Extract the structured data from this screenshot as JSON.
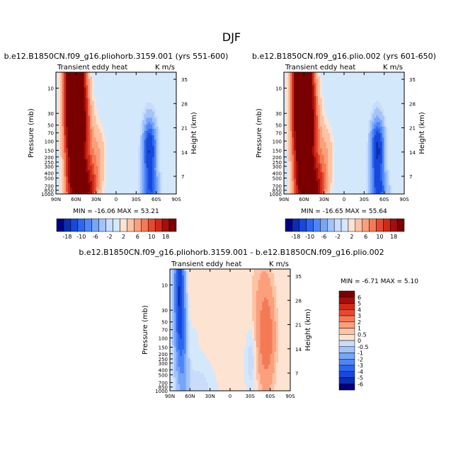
{
  "figure": {
    "title": "DJF",
    "colors": {
      "background": "#ffffff",
      "field_background": "#d4e8fb"
    }
  },
  "chart_data": [
    {
      "type": "heatmap",
      "subtitle": "b.e12.B1850CN.f09_g16.pliohorb.3159.001 (yrs 551-600)",
      "left_label": "Transient eddy heat",
      "right_label": "K m/s",
      "xlabel": "",
      "ylabel": "Pressure (mb)",
      "ylabel_right": "Height (km)",
      "x_ticks": [
        "90N",
        "60N",
        "30N",
        "0",
        "30S",
        "60S",
        "90S"
      ],
      "y_ticks": [
        "10",
        "30",
        "50",
        "70",
        "100",
        "150",
        "200",
        "250",
        "300",
        "400",
        "500",
        "700",
        "850",
        "1000"
      ],
      "y_right_ticks": [
        "35",
        "28",
        "21",
        "14",
        "7"
      ],
      "stats": "MIN = -16.06   MAX =  53.21",
      "min": -16.06,
      "max": 53.21,
      "x_range": [
        -90,
        90
      ],
      "p_range": [
        1000,
        5
      ],
      "features": [
        {
          "lat": 62,
          "p": 12,
          "value": 45,
          "slat": 9,
          "sp": 1.1
        },
        {
          "lat": 52,
          "p": 70,
          "value": 12,
          "slat": 10,
          "sp": 0.6
        },
        {
          "lat": 50,
          "p": 850,
          "value": 22,
          "slat": 12,
          "sp": 0.35
        },
        {
          "lat": 28,
          "p": 200,
          "value": 4,
          "slat": 8,
          "sp": 0.4
        },
        {
          "lat": -50,
          "p": 150,
          "value": -14,
          "slat": 7,
          "sp": 0.4
        },
        {
          "lat": -52,
          "p": 900,
          "value": -8,
          "slat": 9,
          "sp": 0.25
        },
        {
          "lat": -10,
          "p": 40,
          "value": 1,
          "slat": 14,
          "sp": 0.7
        }
      ]
    },
    {
      "type": "heatmap",
      "subtitle": "b.e12.B1850CN.f09_g16.plio.002 (yrs 601-650)",
      "left_label": "Transient eddy heat",
      "right_label": "K m/s",
      "xlabel": "",
      "ylabel": "Pressure (mb)",
      "ylabel_right": "Height (km)",
      "x_ticks": [
        "90N",
        "60N",
        "30N",
        "0",
        "30S",
        "60S",
        "90S"
      ],
      "y_ticks": [
        "10",
        "30",
        "50",
        "70",
        "100",
        "150",
        "200",
        "250",
        "300",
        "400",
        "500",
        "700",
        "850",
        "1000"
      ],
      "y_right_ticks": [
        "35",
        "28",
        "21",
        "14",
        "7"
      ],
      "stats": "MIN = -16.65   MAX =  55.64",
      "min": -16.65,
      "max": 55.64,
      "x_range": [
        -90,
        90
      ],
      "p_range": [
        1000,
        5
      ],
      "features": [
        {
          "lat": 62,
          "p": 12,
          "value": 47,
          "slat": 9,
          "sp": 1.1
        },
        {
          "lat": 52,
          "p": 70,
          "value": 12,
          "slat": 10,
          "sp": 0.6
        },
        {
          "lat": 50,
          "p": 850,
          "value": 23,
          "slat": 12,
          "sp": 0.35
        },
        {
          "lat": 28,
          "p": 200,
          "value": 4,
          "slat": 8,
          "sp": 0.4
        },
        {
          "lat": -50,
          "p": 150,
          "value": -15,
          "slat": 7,
          "sp": 0.4
        },
        {
          "lat": -52,
          "p": 900,
          "value": -9,
          "slat": 9,
          "sp": 0.25
        },
        {
          "lat": -10,
          "p": 40,
          "value": 1,
          "slat": 14,
          "sp": 0.7
        }
      ]
    },
    {
      "type": "heatmap",
      "subtitle": "b.e12.B1850CN.f09_g16.pliohorb.3159.001 - b.e12.B1850CN.f09_g16.plio.002",
      "left_label": "Transient eddy heat",
      "right_label": "K m/s",
      "xlabel": "",
      "ylabel": "Pressure (mb)",
      "ylabel_right": "Height (km)",
      "x_ticks": [
        "90N",
        "60N",
        "30N",
        "0",
        "30S",
        "60S",
        "90S"
      ],
      "y_ticks": [
        "10",
        "30",
        "50",
        "70",
        "100",
        "150",
        "200",
        "250",
        "300",
        "400",
        "500",
        "700",
        "850",
        "1000"
      ],
      "y_right_ticks": [
        "35",
        "28",
        "21",
        "14",
        "7"
      ],
      "stats": "MIN =  -6.71   MAX =   5.10",
      "min": -6.71,
      "max": 5.1,
      "x_range": [
        -90,
        90
      ],
      "p_range": [
        1000,
        5
      ],
      "features": [
        {
          "lat": 76,
          "p": 12,
          "value": -5.5,
          "slat": 6,
          "sp": 1.0
        },
        {
          "lat": 68,
          "p": 150,
          "value": -2.5,
          "slat": 7,
          "sp": 0.9
        },
        {
          "lat": 62,
          "p": 20,
          "value": 1.2,
          "slat": 5,
          "sp": 1.2
        },
        {
          "lat": -55,
          "p": 100,
          "value": 2.5,
          "slat": 9,
          "sp": 0.7
        },
        {
          "lat": -45,
          "p": 30,
          "value": 0.8,
          "slat": 12,
          "sp": 1.0
        },
        {
          "lat": -32,
          "p": 250,
          "value": -1.2,
          "slat": 5,
          "sp": 0.4
        },
        {
          "lat": 10,
          "p": 100,
          "value": 0.3,
          "slat": 18,
          "sp": 1.0
        },
        {
          "lat": 45,
          "p": 850,
          "value": -0.8,
          "slat": 15,
          "sp": 0.3
        }
      ]
    }
  ],
  "colorbars": [
    {
      "orientation": "horizontal",
      "labels": [
        "-18",
        "-10",
        "-6",
        "-2",
        "2",
        "6",
        "10",
        "18"
      ],
      "levels": [
        -18,
        -14,
        -10,
        -8,
        -6,
        -4,
        -2,
        -1,
        1,
        2,
        4,
        6,
        8,
        10,
        14,
        18
      ]
    },
    {
      "orientation": "horizontal",
      "labels": [
        "-18",
        "-10",
        "-6",
        "-2",
        "2",
        "6",
        "10",
        "18"
      ],
      "levels": [
        -18,
        -14,
        -10,
        -8,
        -6,
        -4,
        -2,
        -1,
        1,
        2,
        4,
        6,
        8,
        10,
        14,
        18
      ]
    },
    {
      "orientation": "vertical",
      "labels": [
        "6",
        "5",
        "4",
        "3",
        "2",
        "1",
        "0.5",
        "0",
        "-0.5",
        "-1",
        "-2",
        "-3",
        "-4",
        "-5",
        "-6"
      ],
      "levels": [
        -6,
        -5,
        -4,
        -3,
        -2,
        -1,
        -0.5,
        0,
        0.5,
        1,
        2,
        3,
        4,
        5,
        6
      ]
    }
  ],
  "palette": [
    "#00007f",
    "#0a2db4",
    "#1748dc",
    "#2c66f0",
    "#4f86f7",
    "#76a5fa",
    "#a2c3fb",
    "#c8dcfc",
    "#d4e8fb",
    "#fde3d1",
    "#fcc3a4",
    "#fb9f7c",
    "#f47a56",
    "#e6492f",
    "#cf2a17",
    "#a60d0b",
    "#7a0000"
  ]
}
